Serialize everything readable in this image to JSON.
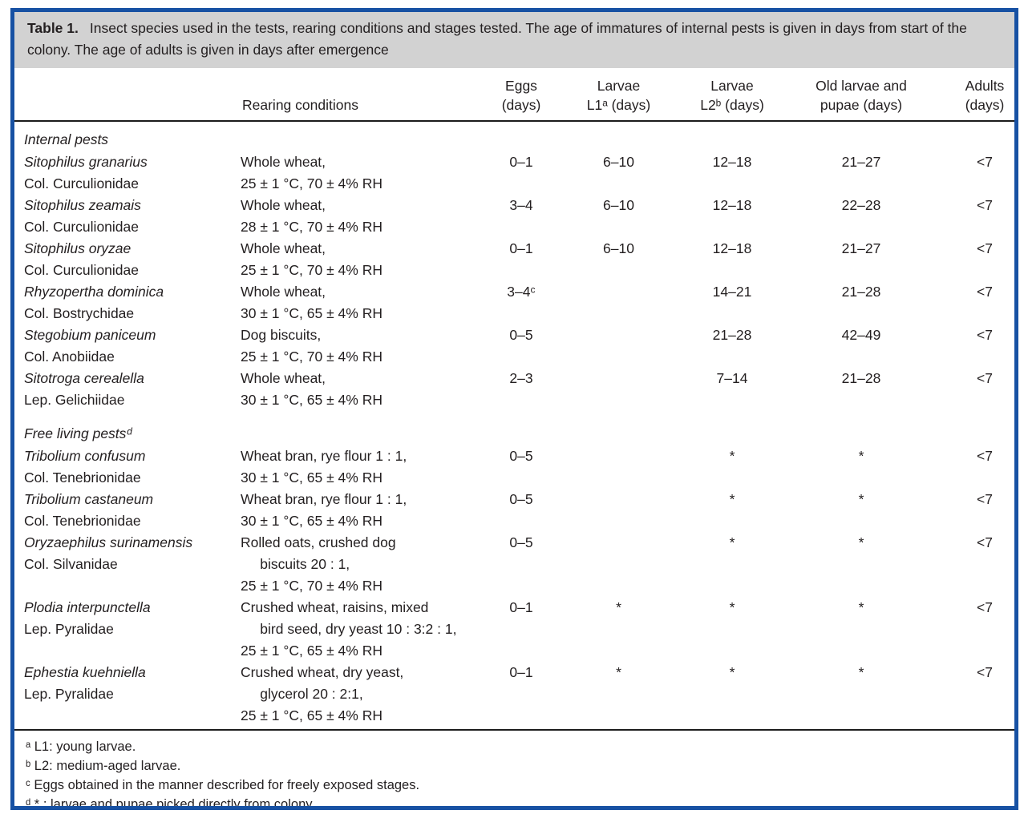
{
  "caption": {
    "label": "Table 1.",
    "text": "Insect species used in the tests, rearing conditions and stages tested. The age of immatures of internal pests is given in days from start of the colony. The age of adults is given in days after emergence"
  },
  "table": {
    "columns": [
      {
        "id": "species",
        "line1": "",
        "line2": ""
      },
      {
        "id": "rearing",
        "line1": "",
        "line2": "Rearing conditions"
      },
      {
        "id": "eggs",
        "line1": "Eggs",
        "line2": "(days)"
      },
      {
        "id": "l1",
        "line1": "Larvae",
        "line2": "L1ᵃ (days)"
      },
      {
        "id": "l2",
        "line1": "Larvae",
        "line2": "L2ᵇ (days)"
      },
      {
        "id": "old",
        "line1": "Old larvae and",
        "line2": "pupae (days)"
      },
      {
        "id": "adults",
        "line1": "Adults",
        "line2": "(days)"
      }
    ],
    "sections": [
      {
        "label": "Internal pests",
        "rows": [
          {
            "species": [
              "Sitophilus granarius",
              "Col. Curculionidae"
            ],
            "rearing": [
              "Whole wheat,",
              "25 ± 1 °C, 70 ± 4% RH"
            ],
            "eggs": "0–1",
            "l1": "6–10",
            "l2": "12–18",
            "old": "21–27",
            "adults": "<7"
          },
          {
            "species": [
              "Sitophilus zeamais",
              "Col. Curculionidae"
            ],
            "rearing": [
              "Whole wheat,",
              "28 ± 1 °C, 70 ± 4% RH"
            ],
            "eggs": "3–4",
            "l1": "6–10",
            "l2": "12–18",
            "old": "22–28",
            "adults": "<7"
          },
          {
            "species": [
              "Sitophilus oryzae",
              "Col. Curculionidae"
            ],
            "rearing": [
              "Whole wheat,",
              "25 ± 1 °C, 70 ± 4% RH"
            ],
            "eggs": "0–1",
            "l1": "6–10",
            "l2": "12–18",
            "old": "21–27",
            "adults": "<7"
          },
          {
            "species": [
              "Rhyzopertha dominica",
              "Col. Bostrychidae"
            ],
            "rearing": [
              "Whole wheat,",
              "30 ± 1 °C, 65 ± 4% RH"
            ],
            "eggs": "3–4ᶜ",
            "l1": "",
            "l2": "14–21",
            "old": "21–28",
            "adults": "<7"
          },
          {
            "species": [
              "Stegobium paniceum",
              "Col. Anobiidae"
            ],
            "rearing": [
              "Dog biscuits,",
              "25 ± 1 °C, 70 ± 4% RH"
            ],
            "eggs": "0–5",
            "l1": "",
            "l2": "21–28",
            "old": "42–49",
            "adults": "<7"
          },
          {
            "species": [
              "Sitotroga cerealella",
              "Lep. Gelichiidae"
            ],
            "rearing": [
              "Whole wheat,",
              "30 ± 1 °C, 65 ± 4% RH"
            ],
            "eggs": "2–3",
            "l1": "",
            "l2": "7–14",
            "old": "21–28",
            "adults": "<7"
          }
        ]
      },
      {
        "label": "Free living pestsᵈ",
        "rows": [
          {
            "species": [
              "Tribolium confusum",
              "Col. Tenebrionidae"
            ],
            "rearing": [
              "Wheat bran, rye flour 1 : 1,",
              "30 ± 1 °C, 65 ± 4% RH"
            ],
            "eggs": "0–5",
            "l1": "",
            "l2": "*",
            "old": "*",
            "adults": "<7"
          },
          {
            "species": [
              "Tribolium castaneum",
              "Col. Tenebrionidae"
            ],
            "rearing": [
              "Wheat bran, rye flour 1 : 1,",
              "30 ± 1 °C, 65 ± 4% RH"
            ],
            "eggs": "0–5",
            "l1": "",
            "l2": "*",
            "old": "*",
            "adults": "<7"
          },
          {
            "species": [
              "Oryzaephilus surinamensis",
              "Col. Silvanidae"
            ],
            "rearing": [
              "Rolled oats, crushed dog",
              "     biscuits 20 : 1,",
              "25 ± 1 °C, 70 ± 4% RH"
            ],
            "eggs": "0–5",
            "l1": "",
            "l2": "*",
            "old": "*",
            "adults": "<7"
          },
          {
            "species": [
              "Plodia interpunctella",
              "Lep. Pyralidae"
            ],
            "rearing": [
              "Crushed wheat, raisins, mixed",
              "     bird seed, dry yeast 10 : 3:2 : 1,",
              "25 ± 1 °C, 65 ± 4% RH"
            ],
            "eggs": "0–1",
            "l1": "*",
            "l2": "*",
            "old": "*",
            "adults": "<7"
          },
          {
            "species": [
              "Ephestia kuehniella",
              "Lep. Pyralidae"
            ],
            "rearing": [
              "Crushed wheat, dry yeast,",
              "     glycerol 20 : 2:1,",
              "25 ± 1 °C, 65 ± 4% RH"
            ],
            "eggs": "0–1",
            "l1": "*",
            "l2": "*",
            "old": "*",
            "adults": "<7"
          }
        ]
      }
    ]
  },
  "footnotes": [
    "ᵃ L1: young larvae.",
    "ᵇ L2: medium-aged larvae.",
    "ᶜ Eggs obtained in the manner described for freely exposed stages.",
    "ᵈ * : larvae and pupae picked directly from colony."
  ],
  "colors": {
    "border_blue": "#1751a3",
    "caption_gray": "#d2d2d2",
    "rule_black": "#1c1c1c",
    "text": "#231f20"
  }
}
